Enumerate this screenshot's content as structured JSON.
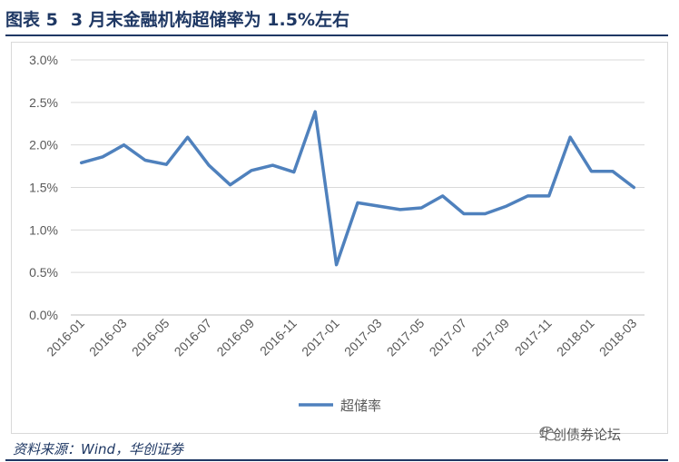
{
  "figure": {
    "label": "图表 5",
    "title": "3 月末金融机构超储率为 1.5%左右",
    "source": "资料来源：Wind，华创证券",
    "watermark": "华创债券论坛",
    "watermark_icon": "wechat-icon"
  },
  "chart_data": {
    "type": "line",
    "x": [
      "2016-01",
      "2016-02",
      "2016-03",
      "2016-04",
      "2016-05",
      "2016-06",
      "2016-07",
      "2016-08",
      "2016-09",
      "2016-10",
      "2016-11",
      "2016-12",
      "2017-01",
      "2017-02",
      "2017-03",
      "2017-04",
      "2017-05",
      "2017-06",
      "2017-07",
      "2017-08",
      "2017-09",
      "2017-10",
      "2017-11",
      "2017-12",
      "2018-01",
      "2018-02",
      "2018-03"
    ],
    "xtick_labels": [
      "2016-01",
      "2016-03",
      "2016-05",
      "2016-07",
      "2016-09",
      "2016-11",
      "2017-01",
      "2017-03",
      "2017-05",
      "2017-07",
      "2017-09",
      "2017-11",
      "2018-01",
      "2018-03"
    ],
    "series": [
      {
        "name": "超储率",
        "values": [
          1.79,
          1.86,
          2.0,
          1.82,
          1.77,
          2.09,
          1.76,
          1.53,
          1.7,
          1.76,
          1.68,
          2.39,
          0.59,
          1.32,
          1.28,
          1.24,
          1.26,
          1.4,
          1.19,
          1.19,
          1.28,
          1.4,
          1.4,
          2.09,
          1.69,
          1.69,
          1.5
        ],
        "color": "#4f81bd"
      }
    ],
    "yticks": [
      "0.0%",
      "0.5%",
      "1.0%",
      "1.5%",
      "2.0%",
      "2.5%",
      "3.0%"
    ],
    "ylim": [
      0,
      3.0
    ],
    "ylabel": "",
    "xlabel": "",
    "grid": true,
    "legend_position": "bottom-center"
  }
}
